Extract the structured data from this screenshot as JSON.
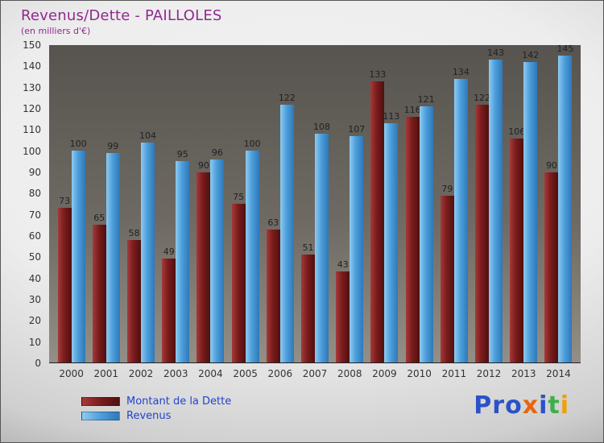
{
  "header": {
    "title": "Revenus/Dette - PAILLOLES",
    "subtitle": "(en milliers d'€)"
  },
  "chart_data": {
    "type": "bar",
    "title": "Revenus/Dette - PAILLOLES",
    "subtitle": "(en milliers d'€)",
    "categories": [
      "2000",
      "2001",
      "2002",
      "2003",
      "2004",
      "2005",
      "2006",
      "2007",
      "2008",
      "2009",
      "2010",
      "2011",
      "2012",
      "2013",
      "2014"
    ],
    "series": [
      {
        "name": "Montant de la Dette",
        "color": "#7a1c1c",
        "color_light": "#a63a3a",
        "color_dark": "#4f1010",
        "values": [
          73,
          65,
          58,
          49,
          90,
          75,
          63,
          51,
          43,
          133,
          116,
          79,
          122,
          106,
          90
        ]
      },
      {
        "name": "Revenus",
        "color": "#4d9fdc",
        "color_light": "#8ecbf0",
        "color_dark": "#2f78b8",
        "values": [
          100,
          99,
          104,
          95,
          96,
          100,
          122,
          108,
          107,
          113,
          121,
          134,
          143,
          142,
          145
        ]
      }
    ],
    "ylim": [
      0,
      150
    ],
    "ytick_step": 10,
    "grid": false,
    "legend_position": "bottom-left"
  },
  "legend": {
    "items": [
      {
        "label": "Montant de la Dette",
        "color": "#7a1c1c",
        "color_light": "#a63a3a",
        "color_dark": "#4f1010"
      },
      {
        "label": "Revenus",
        "color": "#4d9fdc",
        "color_light": "#8ecbf0",
        "color_dark": "#2f78b8"
      }
    ]
  },
  "logo": {
    "text": "Proxiti",
    "letters": [
      {
        "ch": "P",
        "color": "#2a52c8"
      },
      {
        "ch": "r",
        "color": "#2a52c8"
      },
      {
        "ch": "o",
        "color": "#2a52c8"
      },
      {
        "ch": "x",
        "color": "#e8650d"
      },
      {
        "ch": "i",
        "color": "#2a52c8"
      },
      {
        "ch": "t",
        "color": "#3fae49"
      },
      {
        "ch": "i",
        "color": "#f0a000"
      }
    ]
  }
}
